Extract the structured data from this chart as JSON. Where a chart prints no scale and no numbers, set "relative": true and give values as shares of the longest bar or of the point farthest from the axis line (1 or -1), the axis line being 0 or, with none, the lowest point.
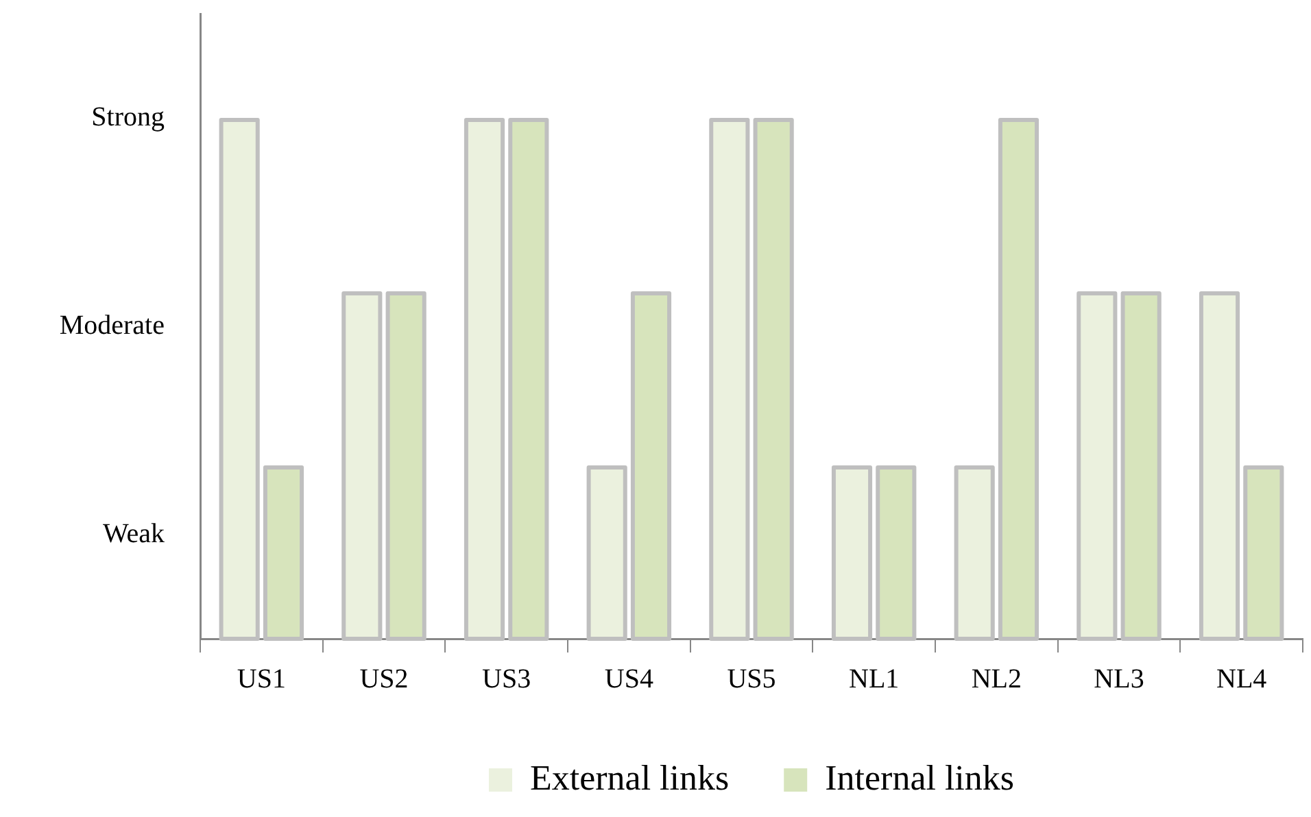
{
  "chart_data": {
    "type": "bar",
    "relative": true,
    "categories": [
      "US1",
      "US2",
      "US3",
      "US4",
      "US5",
      "NL1",
      "NL2",
      "NL3",
      "NL4"
    ],
    "series": [
      {
        "name": "External links",
        "color": "#ebf1de",
        "values": [
          1,
          0.667,
          1,
          0.333,
          1,
          0.333,
          0.333,
          0.667,
          0.667
        ]
      },
      {
        "name": "Internal links",
        "color": "#d7e4bc",
        "values": [
          0.333,
          0.667,
          1,
          0.667,
          1,
          0.333,
          1,
          0.667,
          0.333
        ]
      }
    ],
    "annotations": [
      "Weak",
      "Moderate",
      "Strong"
    ],
    "grid": false,
    "legend": "bottom"
  }
}
